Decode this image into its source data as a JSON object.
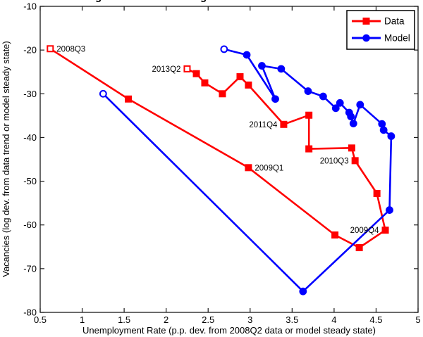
{
  "figure": {
    "clipped_title_glyphs": [
      {
        "glyph": "g",
        "x": 135
      },
      {
        "glyph": "g",
        "x": 284
      }
    ]
  },
  "chart_data": {
    "type": "line",
    "title": "",
    "grid": false,
    "box": true,
    "x_axis": {
      "label": "Unemployment Rate (p.p. dev. from 2008Q2 data or model steady state)",
      "range": [
        0.5,
        5
      ],
      "ticks": [
        0.5,
        1,
        1.5,
        2,
        2.5,
        3,
        3.5,
        4,
        4.5,
        5
      ],
      "tick_labels": [
        "0.5",
        "1",
        "1.5",
        "2",
        "2.5",
        "3",
        "3.5",
        "4",
        "4.5",
        "5"
      ]
    },
    "y_axis": {
      "label": "Vacancies (log dev. from data trend or model steady state)",
      "range": [
        -80,
        -10
      ],
      "ticks": [
        -10,
        -20,
        -30,
        -40,
        -50,
        -60,
        -70,
        -80
      ],
      "tick_labels": [
        "-10",
        "-20",
        "-30",
        "-40",
        "-50",
        "-60",
        "-70",
        "-80"
      ]
    },
    "series": [
      {
        "name": "Data",
        "color": "#ff0000",
        "marker": "square",
        "open_marker_indices": [
          0,
          17
        ],
        "points": [
          [
            0.62,
            -19.7
          ],
          [
            1.55,
            -31.2
          ],
          [
            2.98,
            -46.9
          ],
          [
            4.01,
            -62.3
          ],
          [
            4.3,
            -65.2
          ],
          [
            4.61,
            -61.2
          ],
          [
            4.51,
            -52.8
          ],
          [
            4.25,
            -45.3
          ],
          [
            4.21,
            -42.4
          ],
          [
            3.7,
            -42.6
          ],
          [
            3.7,
            -34.9
          ],
          [
            3.4,
            -37.0
          ],
          [
            2.98,
            -28.0
          ],
          [
            2.88,
            -26.1
          ],
          [
            2.67,
            -30.0
          ],
          [
            2.46,
            -27.5
          ],
          [
            2.36,
            -25.4
          ],
          [
            2.25,
            -24.3
          ]
        ]
      },
      {
        "name": "Model",
        "color": "#0000ff",
        "marker": "circle",
        "open_marker_indices": [
          0,
          18
        ],
        "points": [
          [
            1.25,
            -30.0
          ],
          [
            3.63,
            -75.2
          ],
          [
            4.66,
            -56.6
          ],
          [
            4.68,
            -39.7
          ],
          [
            4.59,
            -38.3
          ],
          [
            4.57,
            -36.9
          ],
          [
            4.31,
            -32.5
          ],
          [
            4.23,
            -36.8
          ],
          [
            4.2,
            -35.2
          ],
          [
            4.18,
            -34.3
          ],
          [
            4.07,
            -32.1
          ],
          [
            4.02,
            -33.3
          ],
          [
            3.87,
            -30.6
          ],
          [
            3.69,
            -29.4
          ],
          [
            3.37,
            -24.3
          ],
          [
            3.14,
            -23.6
          ],
          [
            3.3,
            -31.2
          ],
          [
            2.96,
            -21.1
          ],
          [
            2.69,
            -19.8
          ]
        ]
      }
    ],
    "annotations": [
      {
        "text": "2008Q3",
        "x": 0.62,
        "y": -19.7,
        "side": "right"
      },
      {
        "text": "2013Q2",
        "x": 2.25,
        "y": -24.3,
        "side": "left"
      },
      {
        "text": "2011Q4",
        "x": 3.4,
        "y": -37.0,
        "side": "left"
      },
      {
        "text": "2009Q1",
        "x": 2.98,
        "y": -46.9,
        "side": "right"
      },
      {
        "text": "2010Q3",
        "x": 4.25,
        "y": -45.3,
        "side": "left"
      },
      {
        "text": "2009Q4",
        "x": 4.61,
        "y": -61.2,
        "side": "left"
      }
    ],
    "legend": {
      "position": "top-right",
      "entries": [
        {
          "label": "Data",
          "color": "#ff0000",
          "marker": "square"
        },
        {
          "label": "Model",
          "color": "#0000ff",
          "marker": "circle"
        }
      ]
    }
  }
}
